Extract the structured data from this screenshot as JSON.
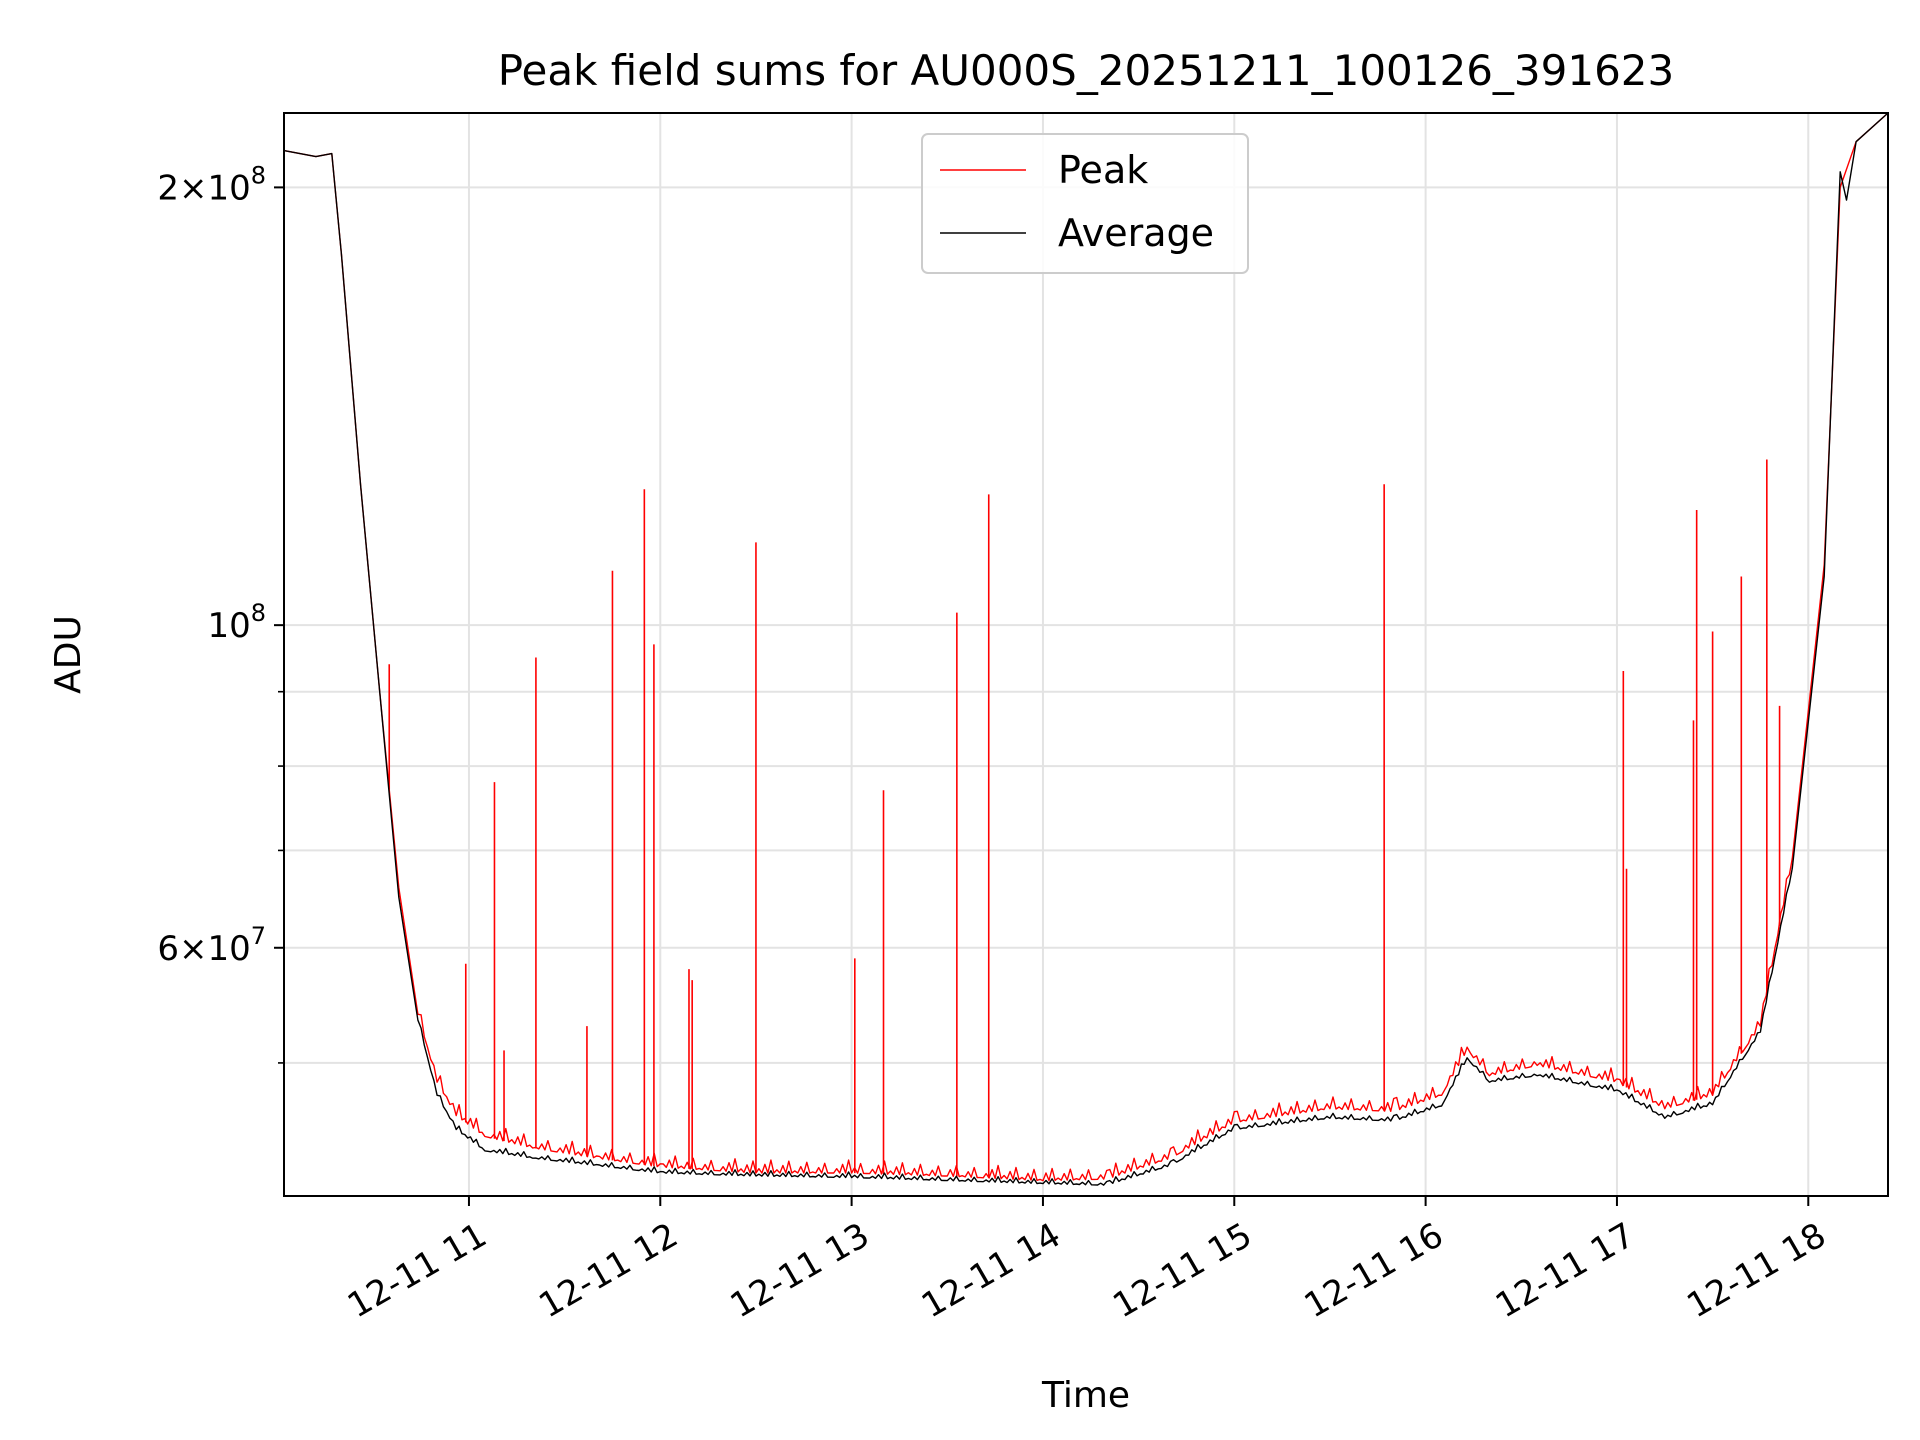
{
  "chart_data": {
    "type": "line",
    "title": "Peak field sums for AU000S_20251211_100126_391623",
    "xlabel": "Time",
    "ylabel": "ADU",
    "y_scale": "log",
    "xlim": [
      "2025-12-11 10:02",
      "2025-12-11 18:25"
    ],
    "ylim": [
      40500000.0,
      225000000.0
    ],
    "grid": true,
    "legend_position": "upper center",
    "x_ticks": [
      "12-11 11",
      "12-11 12",
      "12-11 13",
      "12-11 14",
      "12-11 15",
      "12-11 16",
      "12-11 17",
      "12-11 18"
    ],
    "y_major_ticks": [
      {
        "value": 200000000,
        "mantissa": "2",
        "exponent": "8"
      },
      {
        "value": 100000000,
        "mantissa": "",
        "exponent": "8"
      },
      {
        "value": 60000000,
        "mantissa": "6",
        "exponent": "7"
      }
    ],
    "y_minor_ticks": [
      50000000,
      70000000,
      80000000,
      90000000
    ],
    "series": [
      {
        "name": "Peak",
        "color": "#ff0000",
        "x": [
          "2025-12-11 10:02",
          "2025-12-11 10:12",
          "2025-12-11 10:17",
          "2025-12-11 10:20",
          "2025-12-11 10:26",
          "2025-12-11 10:32",
          "2025-12-11 10:38",
          "2025-12-11 10:44",
          "2025-12-11 10:50",
          "2025-12-11 10:56",
          "2025-12-11 11:05",
          "2025-12-11 11:20",
          "2025-12-11 11:40",
          "2025-12-11 12:00",
          "2025-12-11 12:30",
          "2025-12-11 13:00",
          "2025-12-11 13:30",
          "2025-12-11 14:00",
          "2025-12-11 14:20",
          "2025-12-11 14:40",
          "2025-12-11 15:00",
          "2025-12-11 15:30",
          "2025-12-11 15:50",
          "2025-12-11 16:05",
          "2025-12-11 16:13",
          "2025-12-11 16:20",
          "2025-12-11 16:35",
          "2025-12-11 17:00",
          "2025-12-11 17:15",
          "2025-12-11 17:30",
          "2025-12-11 17:45",
          "2025-12-11 17:55",
          "2025-12-11 18:05",
          "2025-12-11 18:10",
          "2025-12-11 18:15",
          "2025-12-11 18:25"
        ],
        "y": [
          212000000,
          210000000,
          211000000,
          180000000,
          125000000,
          90000000,
          66000000,
          54000000,
          48500000,
          46000000,
          44500000,
          43700000,
          43000000,
          42400000,
          42000000,
          42000000,
          41800000,
          41500000,
          41600000,
          43000000,
          45500000,
          46500000,
          46300000,
          47500000,
          51000000,
          49000000,
          49800000,
          48500000,
          46500000,
          47500000,
          53000000,
          69000000,
          110000000,
          200000000,
          215000000,
          225000000
        ],
        "spikes": [
          {
            "x": "2025-12-11 10:35",
            "y": 94000000
          },
          {
            "x": "2025-12-11 10:59",
            "y": 58500000
          },
          {
            "x": "2025-12-11 11:08",
            "y": 78000000
          },
          {
            "x": "2025-12-11 11:11",
            "y": 51000000
          },
          {
            "x": "2025-12-11 11:21",
            "y": 95000000
          },
          {
            "x": "2025-12-11 11:37",
            "y": 53000000
          },
          {
            "x": "2025-12-11 11:45",
            "y": 109000000
          },
          {
            "x": "2025-12-11 11:55",
            "y": 124000000
          },
          {
            "x": "2025-12-11 11:58",
            "y": 97000000
          },
          {
            "x": "2025-12-11 12:09",
            "y": 58000000
          },
          {
            "x": "2025-12-11 12:10",
            "y": 57000000
          },
          {
            "x": "2025-12-11 12:30",
            "y": 114000000
          },
          {
            "x": "2025-12-11 13:01",
            "y": 59000000
          },
          {
            "x": "2025-12-11 13:10",
            "y": 77000000
          },
          {
            "x": "2025-12-11 13:33",
            "y": 102000000
          },
          {
            "x": "2025-12-11 13:43",
            "y": 123000000
          },
          {
            "x": "2025-12-11 15:47",
            "y": 125000000
          },
          {
            "x": "2025-12-11 17:02",
            "y": 93000000
          },
          {
            "x": "2025-12-11 17:03",
            "y": 68000000
          },
          {
            "x": "2025-12-11 17:24",
            "y": 86000000
          },
          {
            "x": "2025-12-11 17:25",
            "y": 120000000
          },
          {
            "x": "2025-12-11 17:30",
            "y": 99000000
          },
          {
            "x": "2025-12-11 17:39",
            "y": 108000000
          },
          {
            "x": "2025-12-11 17:47",
            "y": 130000000
          },
          {
            "x": "2025-12-11 17:51",
            "y": 88000000
          }
        ]
      },
      {
        "name": "Average",
        "color": "#000000",
        "x": [
          "2025-12-11 10:02",
          "2025-12-11 10:12",
          "2025-12-11 10:17",
          "2025-12-11 10:20",
          "2025-12-11 10:26",
          "2025-12-11 10:32",
          "2025-12-11 10:38",
          "2025-12-11 10:44",
          "2025-12-11 10:50",
          "2025-12-11 10:56",
          "2025-12-11 11:05",
          "2025-12-11 11:20",
          "2025-12-11 11:40",
          "2025-12-11 12:00",
          "2025-12-11 12:30",
          "2025-12-11 13:00",
          "2025-12-11 13:30",
          "2025-12-11 14:00",
          "2025-12-11 14:20",
          "2025-12-11 14:40",
          "2025-12-11 15:00",
          "2025-12-11 15:30",
          "2025-12-11 15:50",
          "2025-12-11 16:05",
          "2025-12-11 16:13",
          "2025-12-11 16:20",
          "2025-12-11 16:35",
          "2025-12-11 17:00",
          "2025-12-11 17:15",
          "2025-12-11 17:30",
          "2025-12-11 17:45",
          "2025-12-11 17:55",
          "2025-12-11 18:05",
          "2025-12-11 18:10",
          "2025-12-11 18:12",
          "2025-12-11 18:15",
          "2025-12-11 18:25"
        ],
        "y": [
          212000000,
          210000000,
          211000000,
          180000000,
          125000000,
          90000000,
          65000000,
          53500000,
          47500000,
          45000000,
          43500000,
          43000000,
          42500000,
          42000000,
          41800000,
          41700000,
          41500000,
          41300000,
          41200000,
          42500000,
          45000000,
          45800000,
          45600000,
          46700000,
          50300000,
          48500000,
          49000000,
          47800000,
          45800000,
          46800000,
          52500000,
          68000000,
          108000000,
          205000000,
          196000000,
          215000000,
          225000000
        ]
      }
    ]
  }
}
